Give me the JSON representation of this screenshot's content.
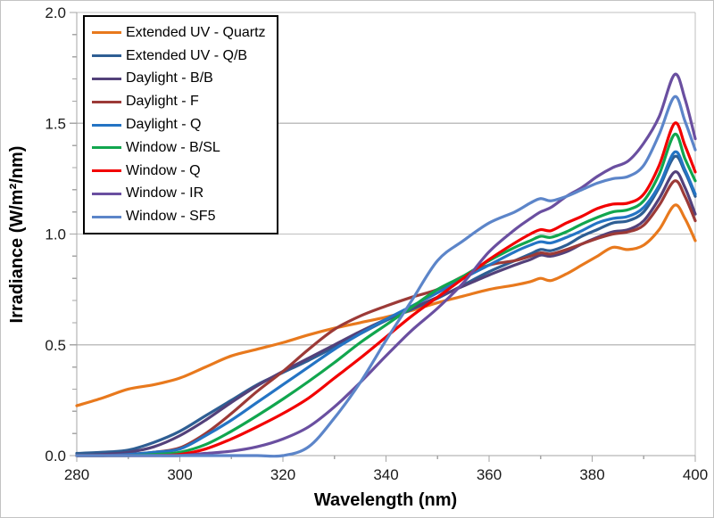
{
  "chart_data": {
    "type": "line",
    "title": "",
    "xlabel": "Wavelength (nm)",
    "ylabel": "Irradiance (W/m²/nm)",
    "xlim": [
      280,
      400
    ],
    "ylim": [
      0.0,
      2.0
    ],
    "x_ticks_major": [
      280,
      300,
      320,
      340,
      360,
      380,
      400
    ],
    "x_ticks_minor": [
      290,
      310,
      330,
      350,
      370,
      390
    ],
    "y_ticks_major": [
      0.0,
      0.5,
      1.0,
      1.5,
      2.0
    ],
    "y_tick_minor_step": 0.1,
    "grid": "horizontal-major-only",
    "legend_position": "top-left-inside",
    "axis_color": "#a6a6a6",
    "gridline_color": "#bfbfbf",
    "x": [
      280,
      285,
      290,
      295,
      300,
      305,
      310,
      315,
      320,
      325,
      330,
      335,
      340,
      345,
      350,
      355,
      360,
      365,
      368,
      370,
      372,
      375,
      378,
      381,
      384,
      387,
      390,
      393,
      396,
      398,
      400
    ],
    "series": [
      {
        "name": "Extended UV - Quartz",
        "slug": "extended-uv-quartz",
        "color": "#e8791d",
        "values": [
          0.225,
          0.26,
          0.3,
          0.32,
          0.35,
          0.4,
          0.45,
          0.48,
          0.51,
          0.545,
          0.575,
          0.6,
          0.625,
          0.655,
          0.69,
          0.72,
          0.75,
          0.77,
          0.785,
          0.8,
          0.79,
          0.82,
          0.86,
          0.9,
          0.94,
          0.93,
          0.95,
          1.02,
          1.13,
          1.07,
          0.97
        ]
      },
      {
        "name": "Extended UV - Q/B",
        "slug": "extended-uv-qb",
        "color": "#2e5e93",
        "values": [
          0.01,
          0.015,
          0.025,
          0.06,
          0.11,
          0.18,
          0.25,
          0.32,
          0.375,
          0.43,
          0.49,
          0.55,
          0.61,
          0.66,
          0.71,
          0.77,
          0.83,
          0.88,
          0.91,
          0.93,
          0.925,
          0.95,
          0.99,
          1.02,
          1.05,
          1.06,
          1.1,
          1.21,
          1.35,
          1.28,
          1.17
        ]
      },
      {
        "name": "Daylight - B/B",
        "slug": "daylight-bb",
        "color": "#53417a",
        "values": [
          0.0,
          0.005,
          0.015,
          0.04,
          0.09,
          0.16,
          0.24,
          0.315,
          0.38,
          0.44,
          0.5,
          0.56,
          0.615,
          0.665,
          0.715,
          0.765,
          0.815,
          0.86,
          0.885,
          0.905,
          0.9,
          0.92,
          0.955,
          0.985,
          1.01,
          1.02,
          1.06,
          1.16,
          1.28,
          1.21,
          1.09
        ]
      },
      {
        "name": "Daylight - F",
        "slug": "daylight-f",
        "color": "#9c3a37",
        "values": [
          0.0,
          0.0,
          0.005,
          0.015,
          0.035,
          0.1,
          0.19,
          0.29,
          0.38,
          0.48,
          0.57,
          0.63,
          0.675,
          0.715,
          0.75,
          0.81,
          0.86,
          0.88,
          0.9,
          0.915,
          0.91,
          0.93,
          0.955,
          0.98,
          1.0,
          1.01,
          1.04,
          1.13,
          1.24,
          1.17,
          1.06
        ]
      },
      {
        "name": "Daylight - Q",
        "slug": "daylight-q",
        "color": "#2474c4",
        "values": [
          0.0,
          0.0,
          0.005,
          0.015,
          0.03,
          0.09,
          0.16,
          0.24,
          0.32,
          0.4,
          0.48,
          0.55,
          0.615,
          0.675,
          0.735,
          0.8,
          0.86,
          0.92,
          0.95,
          0.965,
          0.96,
          0.985,
          1.015,
          1.05,
          1.07,
          1.08,
          1.12,
          1.22,
          1.37,
          1.29,
          1.18
        ]
      },
      {
        "name": "Window - B/SL",
        "slug": "window-bsl",
        "color": "#11a64e",
        "values": [
          0.0,
          0.0,
          0.0,
          0.005,
          0.015,
          0.05,
          0.11,
          0.18,
          0.255,
          0.335,
          0.42,
          0.51,
          0.59,
          0.67,
          0.75,
          0.81,
          0.88,
          0.94,
          0.97,
          0.99,
          0.985,
          1.01,
          1.045,
          1.075,
          1.1,
          1.11,
          1.15,
          1.27,
          1.45,
          1.34,
          1.24
        ]
      },
      {
        "name": "Window - Q",
        "slug": "window-q",
        "color": "#f20000",
        "values": [
          0.0,
          0.0,
          0.0,
          0.0,
          0.005,
          0.03,
          0.075,
          0.13,
          0.19,
          0.26,
          0.35,
          0.44,
          0.535,
          0.63,
          0.715,
          0.8,
          0.885,
          0.96,
          1.0,
          1.02,
          1.015,
          1.05,
          1.08,
          1.115,
          1.135,
          1.14,
          1.18,
          1.31,
          1.5,
          1.4,
          1.28
        ]
      },
      {
        "name": "Window - IR",
        "slug": "window-ir",
        "color": "#6a4fa0",
        "values": [
          0.0,
          0.0,
          0.0,
          0.0,
          0.0,
          0.01,
          0.02,
          0.04,
          0.075,
          0.13,
          0.22,
          0.33,
          0.45,
          0.565,
          0.665,
          0.78,
          0.92,
          1.02,
          1.07,
          1.1,
          1.12,
          1.17,
          1.21,
          1.26,
          1.3,
          1.33,
          1.41,
          1.53,
          1.72,
          1.61,
          1.43
        ]
      },
      {
        "name": "Window - SF5",
        "slug": "window-sf5",
        "color": "#5c85c9",
        "values": [
          0.0,
          0.0,
          0.0,
          0.0,
          0.0,
          0.0,
          0.0,
          0.0,
          0.0,
          0.04,
          0.17,
          0.33,
          0.52,
          0.7,
          0.88,
          0.97,
          1.05,
          1.1,
          1.14,
          1.16,
          1.15,
          1.17,
          1.2,
          1.23,
          1.25,
          1.26,
          1.31,
          1.45,
          1.62,
          1.51,
          1.38
        ]
      }
    ]
  }
}
